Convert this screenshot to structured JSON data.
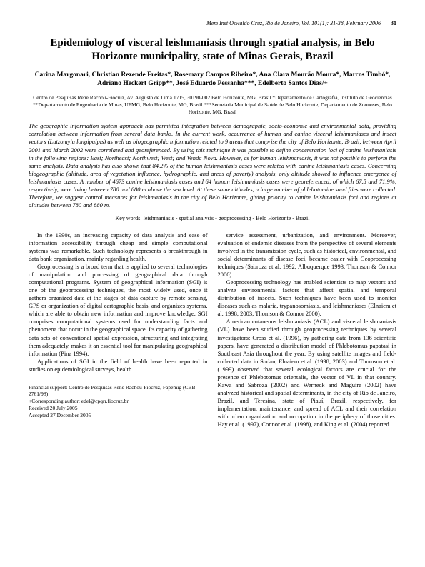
{
  "header": {
    "journal_line": "Mem Inst Oswaldo Cruz, Rio de Janeiro, Vol. 101(1): 31-38, February 2006",
    "page_number": "31"
  },
  "title": "Epidemiology of visceral leishmaniasis through spatial analysis, in Belo Horizonte municipality, state of Minas Gerais, Brazil",
  "authors": "Carina Margonari, Christian Rezende Freitas*, Rosemary Campos Ribeiro*, Ana Clara Mourão Moura*, Marcos Timbó*, Adriano Heckert Gripp**, José Eduardo Pessanha***, Edelberto Santos Dias/+",
  "affiliation": "Centro de Pesquisas René Rachou-Fiocruz, Av. Augusto de Lima 1715, 30190-002 Belo Horizonte, MG, Brasil *Departamento de Cartografia, Instituto de Geociências **Departamento de Engenharia de Minas, UFMG, Belo Horizonte, MG, Brasil ***Secretaria Municipal de Saúde de Belo Horizonte, Departamento de Zoonoses, Belo Horizonte, MG, Brasil",
  "abstract": "The geographic information system approach has permitted integration between demographic, socio-economic and environmental data, providing correlation between information from several data banks. In the current work, occurrence of human and canine visceral leishmaniases and insect vectors (Lutzomyia longipalpis) as well as biogeographic information related to 9 areas that comprise the city of Belo Horizonte, Brazil, between April 2001 and March 2002 were correlated and georeferenced. By using this technique it was possible to define concentration loci of canine leishmaniasis in the following regions: East; Northeast; Northwest; West; and Venda Nova. However, as for human leishmaniasis, it was not possible to perform the same analysis. Data analysis has also shown that 84.2% of the human leishmaniasis cases were related with canine leishmaniasis cases. Concerning biogeographic (altitude, area of vegetation influence, hydrographic, and areas of poverty) analysis, only altitude showed to influence emergence of leishmaniasis cases. A number of 4673 canine leishmaniasis cases and 64 human leishmaniasis cases were georeferenced, of which 67.5 and 71.9%, respectively, were living between 780 and 880 m above the sea level. At these same altitudes, a large number of phlebotomine sand flies were collected. Therefore, we suggest control measures for leishmaniasis in the city of Belo Horizonte, giving priority to canine leishmaniasis foci and regions at altitudes between 780 and 880 m.",
  "keywords": "Key words: leishmaniasis - spatial analysis - geoprocessing - Belo Horizonte - Brazil",
  "body": {
    "left": {
      "p1": "In the 1990s, an increasing capacity of data analysis and ease of information accessibility through cheap and simple computational systems was remarkable. Such technology represents a breakthrough in data bank organization, mainly regarding health.",
      "p2": "Geoprocessing is a broad term that is applied to several technologies of manipulation and processing of geographical data through computational programs. System of geographical information (SGI) is one of the geoprocessing techniques, the most widely used, once it gathers organized data at the stages of data capture by remote sensing, GPS or organization of digital cartographic basis, and organizes systems, which are able to obtain new information and improve knowledge. SGI comprises computational systems used for understanding facts and phenomena that occur in the geographical space. Its capacity of gathering data sets of conventional spatial expression, structuring and integrating them adequately, makes it an essential tool for manipulating geographical information (Pina 1994).",
      "p3": "Applications of SGI in the field of health have been reported in studies on epidemiological surveys, health"
    },
    "right": {
      "p1": "service assessment, urbanization, and environment. Moreover, evaluation of endemic diseases from the perspective of several elements involved in the transmission cycle, such as historical, environmental, and social determinants of disease foci, became easier with Geoprocessing techniques (Sabroza et al. 1992, Albuquerque 1993, Thomson & Connor 2000).",
      "p2": "Geoprocessing technology has enabled scientists to map vectors and analyze environmental factors that affect spatial and temporal distribution of insects. Such techniques have been used to monitor diseases such as malaria, trypanosomiasis, and leishmaniases (Elnaiem et al. 1998, 2003, Thomson & Connor 2000).",
      "p3": "American cutaneous leishmaniasis (ACL) and visceral leishmaniasis (VL) have been studied through geoprocessing techniques by several investigators: Cross et al. (1996), by gathering data from 136 scientific papers, have generated a distribution model of Phlebotomus papatasi in Southeast Asia throughout the year. By using satellite images and field-collected data in Sudan, Elnaiem et al. (1998, 2003) and Thomson et al. (1999) observed that several ecological factors are crucial for the presence of Phlebotomus orientalis, the vector of VL in that country. Kawa and Sabroza (2002) and Werneck and Maguire (2002) have analyzed historical and spatial determinants, in the city of Rio de Janeiro, Brazil, and Teresina, state of Piauí, Brazil, respectively, for implementation, maintenance, and spread of ACL and their correlation with urban organization and occupation in the periphery of those cities. Hay et al. (1997), Connor et al. (1998), and King et al. (2004) reported"
    }
  },
  "footnote": {
    "line1": "Financial support: Centro de Pesquisas René Rachou-Fiocruz, Fapemig (CBB-2761/98)",
    "line2": "+Corresponding author: edel@cpqrr.fiocruz.br",
    "line3": "Received 20 July 2005",
    "line4": "Accepted 27 December 2005"
  }
}
